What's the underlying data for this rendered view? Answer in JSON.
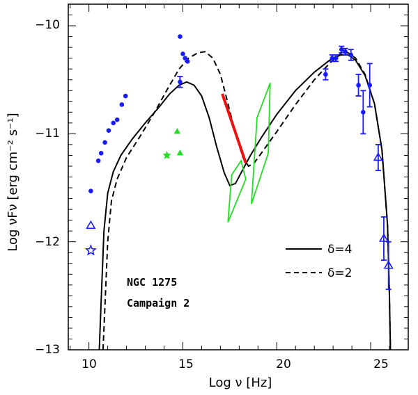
{
  "chart_data": {
    "type": "scatter",
    "title": "",
    "xlabel": "Log ν  [Hz]",
    "ylabel": "Log νFν  [erg cm⁻² s⁻¹]",
    "xlim": [
      8.9,
      27.0
    ],
    "ylim": [
      -13.0,
      -9.8
    ],
    "xticks": [
      10,
      15,
      20,
      25
    ],
    "yticks": [
      -13,
      -12,
      -11,
      -10
    ],
    "xtick_labels": [
      "10",
      "15",
      "20",
      "25"
    ],
    "ytick_labels": [
      "−13",
      "−12",
      "−11",
      "−10"
    ],
    "annotations": [
      "NGC 1275",
      "Campaign 2"
    ],
    "legend": [
      {
        "label": "δ=4",
        "style": "solid"
      },
      {
        "label": "δ=2",
        "style": "dashed"
      }
    ],
    "colors": {
      "blue": "#1a1aff",
      "green": "#22dd22",
      "red": "#ee1111",
      "black": "#000000"
    },
    "models": [
      {
        "name": "δ=4",
        "style": "solid",
        "points": [
          [
            10.55,
            -13.0
          ],
          [
            10.65,
            -12.55
          ],
          [
            10.8,
            -11.9
          ],
          [
            11.0,
            -11.55
          ],
          [
            11.3,
            -11.35
          ],
          [
            11.7,
            -11.2
          ],
          [
            12.3,
            -11.05
          ],
          [
            13.0,
            -10.9
          ],
          [
            13.7,
            -10.76
          ],
          [
            14.3,
            -10.63
          ],
          [
            14.8,
            -10.55
          ],
          [
            15.2,
            -10.52
          ],
          [
            15.6,
            -10.55
          ],
          [
            16.0,
            -10.65
          ],
          [
            16.4,
            -10.85
          ],
          [
            16.8,
            -11.12
          ],
          [
            17.2,
            -11.36
          ],
          [
            17.5,
            -11.48
          ],
          [
            17.8,
            -11.46
          ],
          [
            18.2,
            -11.33
          ],
          [
            18.6,
            -11.2
          ],
          [
            19.2,
            -11.03
          ],
          [
            20.0,
            -10.82
          ],
          [
            21.0,
            -10.6
          ],
          [
            22.0,
            -10.43
          ],
          [
            22.8,
            -10.32
          ],
          [
            23.4,
            -10.27
          ],
          [
            23.8,
            -10.27
          ],
          [
            24.2,
            -10.32
          ],
          [
            24.7,
            -10.46
          ],
          [
            25.2,
            -10.72
          ],
          [
            25.6,
            -11.15
          ],
          [
            25.9,
            -11.85
          ],
          [
            26.0,
            -12.5
          ],
          [
            26.05,
            -13.0
          ]
        ]
      },
      {
        "name": "δ=2",
        "style": "dashed",
        "points": [
          [
            10.75,
            -13.0
          ],
          [
            10.85,
            -12.6
          ],
          [
            11.0,
            -12.0
          ],
          [
            11.2,
            -11.62
          ],
          [
            11.5,
            -11.42
          ],
          [
            12.0,
            -11.22
          ],
          [
            12.7,
            -11.03
          ],
          [
            13.5,
            -10.8
          ],
          [
            14.2,
            -10.58
          ],
          [
            14.8,
            -10.4
          ],
          [
            15.3,
            -10.3
          ],
          [
            15.8,
            -10.25
          ],
          [
            16.2,
            -10.24
          ],
          [
            16.6,
            -10.3
          ],
          [
            17.0,
            -10.45
          ],
          [
            17.4,
            -10.72
          ],
          [
            17.8,
            -11.0
          ],
          [
            18.2,
            -11.22
          ],
          [
            18.5,
            -11.3
          ],
          [
            18.8,
            -11.27
          ],
          [
            19.3,
            -11.15
          ],
          [
            20.0,
            -10.98
          ],
          [
            21.0,
            -10.73
          ],
          [
            22.0,
            -10.5
          ],
          [
            22.8,
            -10.35
          ],
          [
            23.4,
            -10.26
          ],
          [
            23.8,
            -10.25
          ],
          [
            24.2,
            -10.3
          ],
          [
            24.7,
            -10.45
          ],
          [
            25.2,
            -10.72
          ],
          [
            25.6,
            -11.15
          ],
          [
            25.9,
            -11.85
          ],
          [
            26.0,
            -12.5
          ],
          [
            26.05,
            -13.0
          ]
        ]
      }
    ],
    "data_points": [
      {
        "x": 10.1,
        "y": -11.53
      },
      {
        "x": 10.5,
        "y": -11.25
      },
      {
        "x": 10.65,
        "y": -11.18
      },
      {
        "x": 10.85,
        "y": -11.08
      },
      {
        "x": 11.05,
        "y": -10.97
      },
      {
        "x": 11.3,
        "y": -10.9
      },
      {
        "x": 11.5,
        "y": -10.87
      },
      {
        "x": 11.75,
        "y": -10.73
      },
      {
        "x": 11.95,
        "y": -10.65
      },
      {
        "x": 14.85,
        "y": -10.1
      },
      {
        "x": 15.0,
        "y": -10.26
      },
      {
        "x": 15.12,
        "y": -10.3
      },
      {
        "x": 15.25,
        "y": -10.33
      },
      {
        "x": 14.85,
        "y": -10.52,
        "err": 0.05
      }
    ],
    "data_points_gamma": [
      {
        "x": 22.6,
        "y": -10.45,
        "err": 0.05
      },
      {
        "x": 22.95,
        "y": -10.3,
        "err": 0.03
      },
      {
        "x": 23.15,
        "y": -10.3,
        "err": 0.03
      },
      {
        "x": 23.45,
        "y": -10.22,
        "err": 0.03
      },
      {
        "x": 23.65,
        "y": -10.24,
        "err": 0.03
      },
      {
        "x": 23.95,
        "y": -10.27,
        "err": 0.05
      },
      {
        "x": 24.35,
        "y": -10.55,
        "err": 0.1
      },
      {
        "x": 24.6,
        "y": -10.8,
        "err": 0.2
      },
      {
        "x": 24.95,
        "y": -10.55,
        "err": 0.2
      }
    ],
    "upper_triangles": [
      {
        "x": 10.1,
        "y": -11.85
      },
      {
        "x": 25.4,
        "y": -11.22,
        "err": 0.12
      },
      {
        "x": 25.7,
        "y": -11.97,
        "err": 0.2
      },
      {
        "x": 25.95,
        "y": -12.22,
        "err": 0.22
      }
    ],
    "upper_star": {
      "x": 10.1,
      "y": -12.08
    },
    "green_points": [
      {
        "x": 14.15,
        "y": -11.2,
        "shape": "star"
      },
      {
        "x": 14.7,
        "y": -10.98,
        "shape": "triangle"
      },
      {
        "x": 14.85,
        "y": -11.18,
        "shape": "triangle"
      }
    ],
    "red_line": [
      [
        17.1,
        -10.63
      ],
      [
        18.35,
        -11.27
      ]
    ],
    "xray_butterflies": [
      [
        [
          17.4,
          -11.82
        ],
        [
          17.6,
          -11.38
        ],
        [
          18.1,
          -11.25
        ],
        [
          18.35,
          -11.42
        ],
        [
          17.4,
          -11.82
        ]
      ],
      [
        [
          18.65,
          -11.65
        ],
        [
          18.95,
          -10.85
        ],
        [
          19.65,
          -10.53
        ],
        [
          19.55,
          -11.18
        ],
        [
          18.65,
          -11.65
        ]
      ]
    ]
  }
}
